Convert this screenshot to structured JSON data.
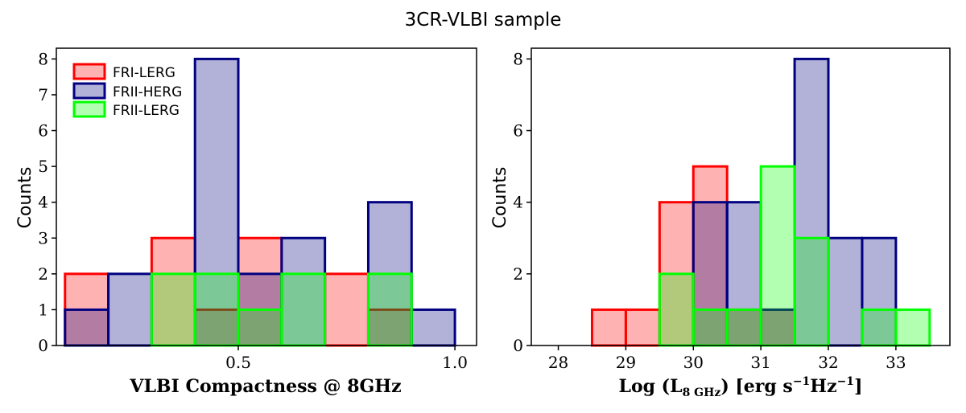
{
  "figure_title": "3CR-VLBI sample",
  "colors": {
    "FRI-LERG": {
      "fill": "#ff0000",
      "edge": "#ff0000",
      "alpha": 0.3
    },
    "FRII-HERG": {
      "fill": "#000080",
      "edge": "#000080",
      "alpha": 0.3
    },
    "FRII-LERG": {
      "fill": "#00ff00",
      "edge": "#00ff00",
      "alpha": 0.3
    }
  },
  "chart_data": [
    {
      "type": "bar",
      "title": "",
      "xlabel": "VLBI Compactness @ 8GHz",
      "ylabel": "Counts",
      "xlim": [
        0.08,
        1.05
      ],
      "ylim": [
        0,
        8.3
      ],
      "xticks": [
        0.5,
        1.0
      ],
      "xtick_labels": [
        "0.5",
        "1.0"
      ],
      "yticks": [
        0,
        1,
        2,
        3,
        4,
        5,
        6,
        7,
        8
      ],
      "ytick_labels": [
        "0",
        "1",
        "2",
        "3",
        "4",
        "5",
        "6",
        "7",
        "8"
      ],
      "legend": {
        "position": "upper-left",
        "entries": [
          "FRI-LERG",
          "FRII-HERG",
          "FRII-LERG"
        ]
      },
      "series": [
        {
          "name": "FRI-LERG",
          "bin_edges": [
            0.1,
            0.2,
            0.3,
            0.4,
            0.5,
            0.6,
            0.7,
            0.8,
            0.9
          ],
          "values": [
            2,
            0,
            3,
            1,
            3,
            0,
            2,
            1
          ]
        },
        {
          "name": "FRII-HERG",
          "bin_edges": [
            0.1,
            0.2,
            0.3,
            0.4,
            0.5,
            0.6,
            0.7,
            0.8,
            0.9,
            1.0
          ],
          "values": [
            1,
            2,
            0,
            8,
            2,
            3,
            0,
            4,
            1
          ]
        },
        {
          "name": "FRII-LERG",
          "bin_edges": [
            0.3,
            0.4,
            0.5,
            0.6,
            0.7,
            0.8,
            0.9
          ],
          "values": [
            2,
            2,
            1,
            2,
            0,
            2
          ]
        }
      ]
    },
    {
      "type": "bar",
      "title": "",
      "xlabel": "Log (L8 GHz) [erg s-1Hz-1]",
      "xlabel_parts": {
        "pre": "Log (L",
        "sub": "8 GHz",
        "mid1": ")  [erg s",
        "sup1": "−1",
        "mid2": "Hz",
        "sup2": "−1",
        "post": "]"
      },
      "ylabel": "Counts",
      "xlim": [
        27.6,
        33.8
      ],
      "ylim": [
        0,
        8.3
      ],
      "xticks": [
        28,
        29,
        30,
        31,
        32,
        33
      ],
      "xtick_labels": [
        "28",
        "29",
        "30",
        "31",
        "32",
        "33"
      ],
      "yticks": [
        0,
        2,
        4,
        6,
        8
      ],
      "ytick_labels": [
        "0",
        "2",
        "4",
        "6",
        "8"
      ],
      "series": [
        {
          "name": "FRI-LERG",
          "bin_edges": [
            28.5,
            29.0,
            29.5,
            30.0,
            30.5,
            31.0,
            31.5
          ],
          "values": [
            1,
            1,
            4,
            5,
            1,
            1
          ]
        },
        {
          "name": "FRII-HERG",
          "bin_edges": [
            30.0,
            30.5,
            31.0,
            31.5,
            32.0,
            32.5,
            33.0
          ],
          "values": [
            4,
            4,
            1,
            8,
            3,
            3
          ]
        },
        {
          "name": "FRII-LERG",
          "bin_edges": [
            27.5,
            28.0,
            29.5,
            30.0,
            30.5,
            31.0,
            31.5,
            32.0,
            32.5,
            33.0,
            33.5
          ],
          "values": [
            0,
            0,
            2,
            1,
            1,
            5,
            3,
            0,
            1,
            1
          ]
        }
      ]
    }
  ]
}
